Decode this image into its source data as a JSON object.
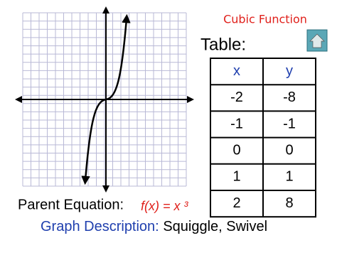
{
  "title": "Cubic Function",
  "table": {
    "caption": "Table:",
    "columns": [
      "x",
      "y"
    ],
    "rows": [
      [
        "-2",
        "-8"
      ],
      [
        "-1",
        "-1"
      ],
      [
        "0",
        "0"
      ],
      [
        "1",
        "1"
      ],
      [
        "2",
        "8"
      ]
    ]
  },
  "equation": {
    "label": "Parent Equation:",
    "formula": "f(x) = x ³"
  },
  "description": {
    "label": "Graph Description:",
    "text": "Squiggle, Swivel"
  }
}
